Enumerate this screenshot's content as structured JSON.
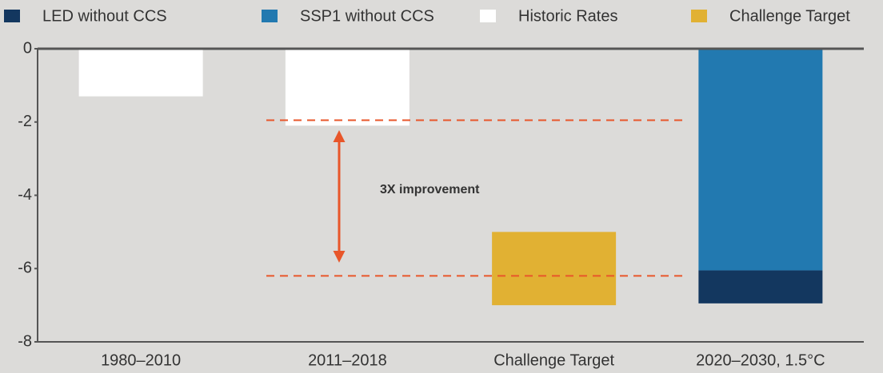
{
  "chart_data": {
    "type": "bar",
    "categories": [
      "1980–2010",
      "2011–2018",
      "Challenge Target",
      "2020–2030, 1.5°C"
    ],
    "series": [
      {
        "name": "LED without CCS",
        "color": "#13375f",
        "values": [
          null,
          null,
          null,
          -0.9
        ]
      },
      {
        "name": "SSP1 without CCS",
        "color": "#2279b0",
        "values": [
          null,
          null,
          null,
          -6.05
        ]
      },
      {
        "name": "Historic Rates",
        "color": "#ffffff",
        "values": [
          -1.3,
          -2.1,
          null,
          null
        ]
      },
      {
        "name": "Challenge Target",
        "color": "#e1b133",
        "from": [
          null,
          null,
          -5,
          null
        ],
        "values": [
          null,
          null,
          -7,
          null
        ]
      }
    ],
    "ylim": [
      -8,
      0
    ],
    "yticks": [
      0,
      -2,
      -4,
      -6,
      -8
    ],
    "reference_lines": [
      {
        "value": -1.95,
        "color": "#e8562a"
      },
      {
        "value": -6.2,
        "color": "#e8562a"
      }
    ],
    "annotation": "3X improvement"
  }
}
